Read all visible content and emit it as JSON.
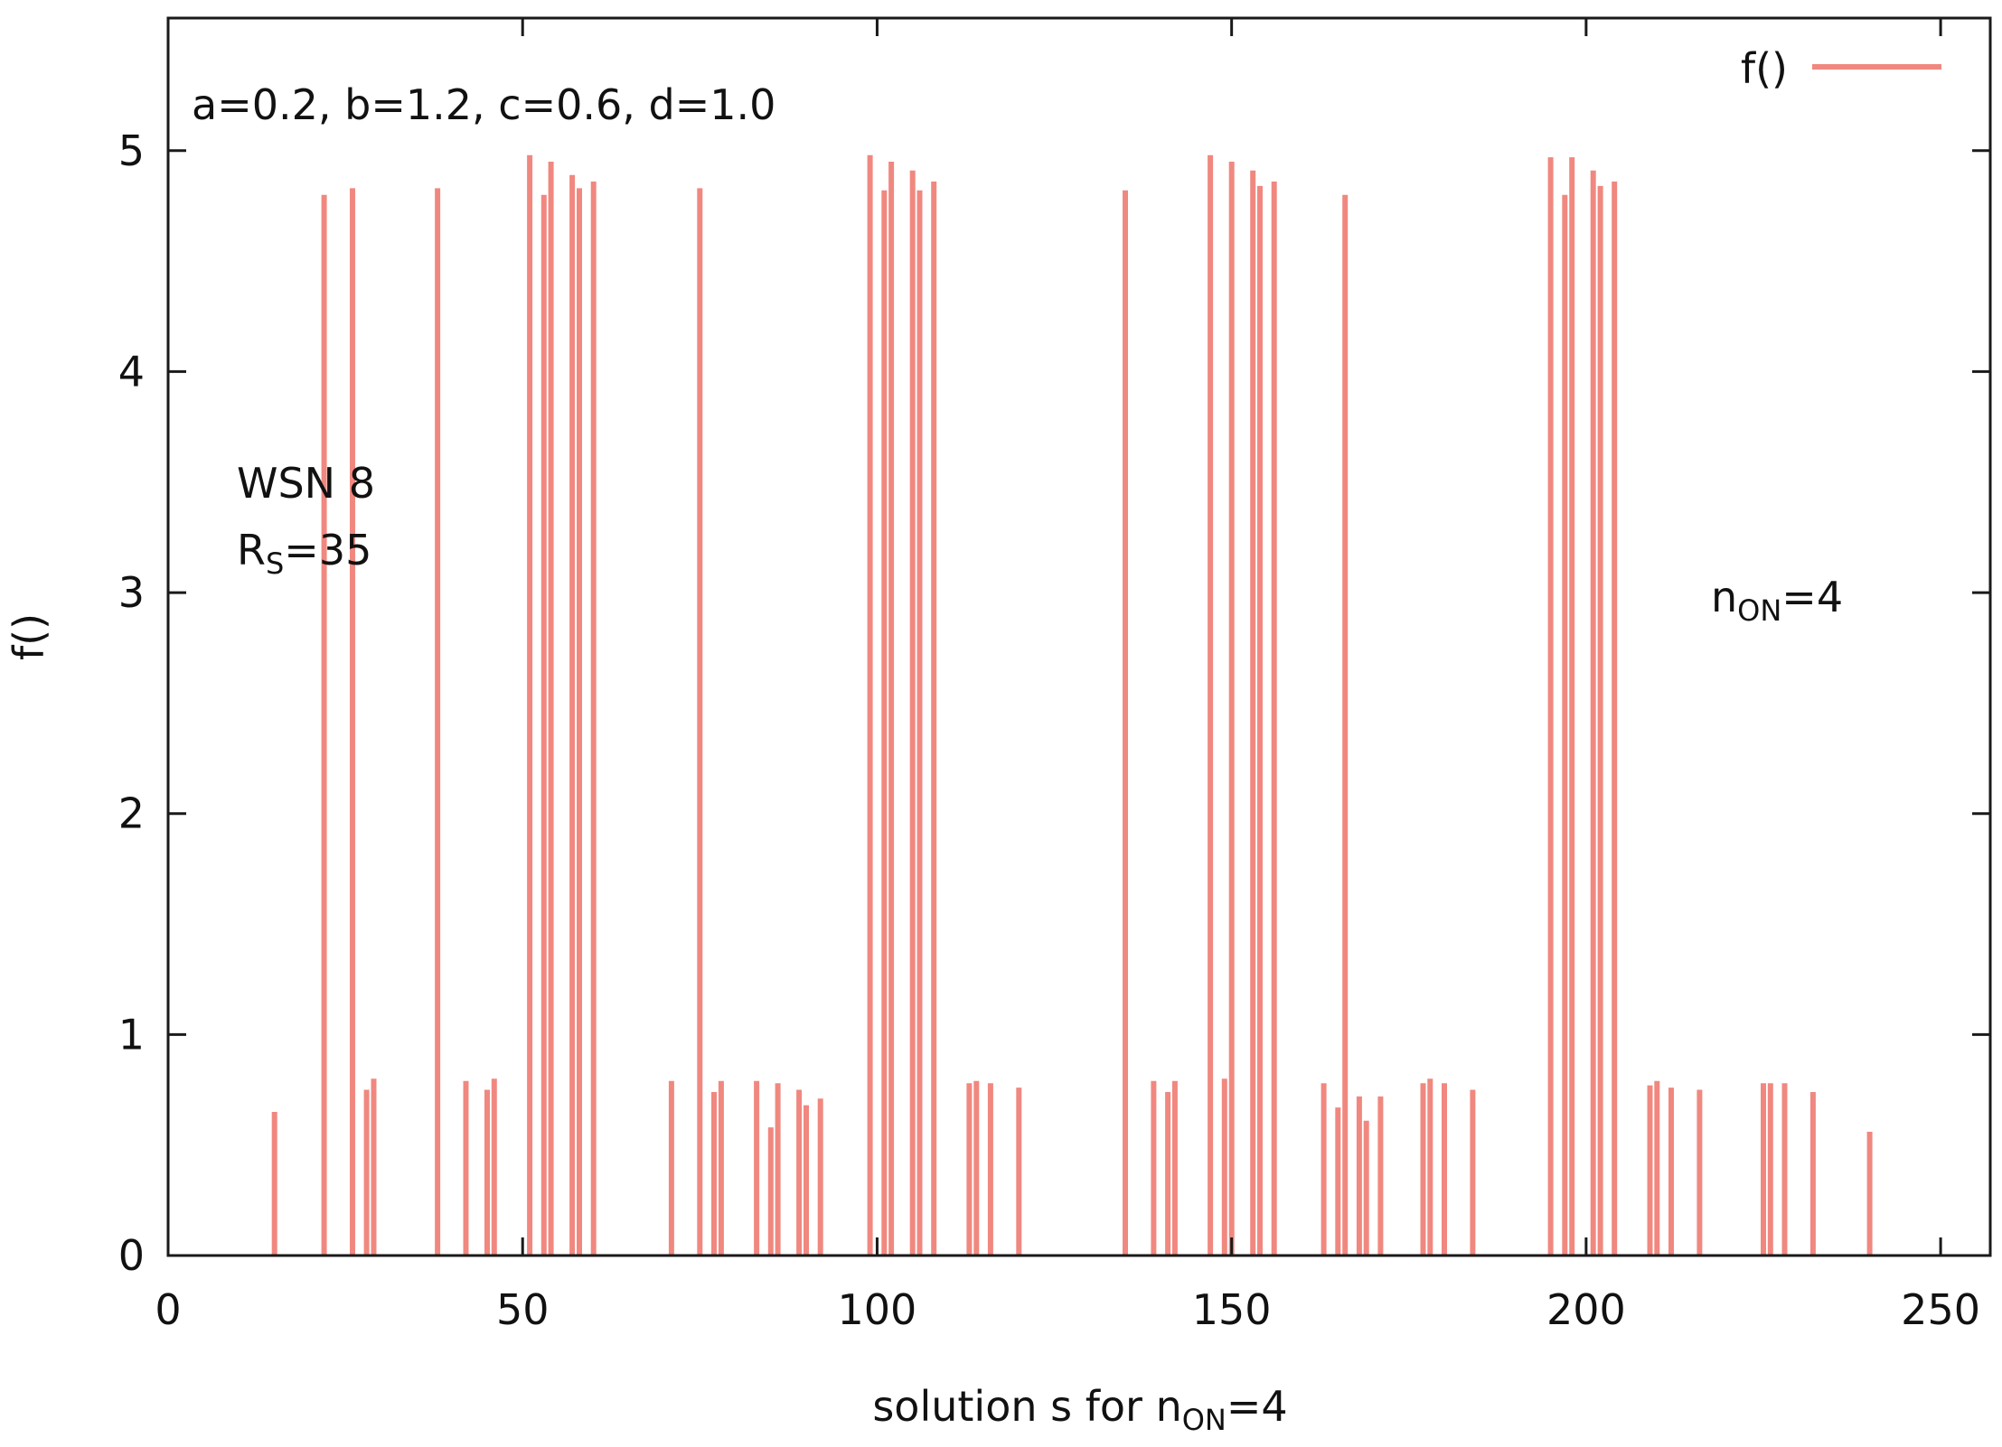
{
  "chart_data": {
    "type": "bar",
    "title": "",
    "xlabel": {
      "main": "solution s for n",
      "sub": "ON",
      "tail": "=4"
    },
    "ylabel": "f()",
    "xlim": [
      0,
      257
    ],
    "ylim": [
      0,
      5.6
    ],
    "xticks": [
      0,
      50,
      100,
      150,
      200,
      250
    ],
    "yticks": [
      0,
      1,
      2,
      3,
      4,
      5
    ],
    "grid": false,
    "legend": {
      "position": "top-right",
      "label": "f()"
    },
    "series": [
      {
        "name": "f()",
        "color": "#f08880",
        "points": [
          [
            15,
            0.65
          ],
          [
            22,
            4.8
          ],
          [
            26,
            4.83
          ],
          [
            28,
            0.75
          ],
          [
            29,
            0.8
          ],
          [
            38,
            4.83
          ],
          [
            42,
            0.79
          ],
          [
            45,
            0.75
          ],
          [
            46,
            0.8
          ],
          [
            51,
            4.98
          ],
          [
            53,
            4.8
          ],
          [
            54,
            4.95
          ],
          [
            57,
            4.89
          ],
          [
            58,
            4.83
          ],
          [
            60,
            4.86
          ],
          [
            71,
            0.79
          ],
          [
            75,
            4.83
          ],
          [
            77,
            0.74
          ],
          [
            78,
            0.79
          ],
          [
            83,
            0.79
          ],
          [
            85,
            0.58
          ],
          [
            86,
            0.78
          ],
          [
            89,
            0.75
          ],
          [
            90,
            0.68
          ],
          [
            92,
            0.71
          ],
          [
            99,
            4.98
          ],
          [
            101,
            4.82
          ],
          [
            102,
            4.95
          ],
          [
            105,
            4.91
          ],
          [
            106,
            4.82
          ],
          [
            108,
            4.86
          ],
          [
            113,
            0.78
          ],
          [
            114,
            0.79
          ],
          [
            116,
            0.78
          ],
          [
            120,
            0.76
          ],
          [
            135,
            4.82
          ],
          [
            139,
            0.79
          ],
          [
            141,
            0.74
          ],
          [
            142,
            0.79
          ],
          [
            147,
            4.98
          ],
          [
            149,
            0.8
          ],
          [
            150,
            4.95
          ],
          [
            153,
            4.91
          ],
          [
            154,
            4.84
          ],
          [
            156,
            4.86
          ],
          [
            163,
            0.78
          ],
          [
            165,
            0.67
          ],
          [
            166,
            4.8
          ],
          [
            168,
            0.72
          ],
          [
            169,
            0.61
          ],
          [
            171,
            0.72
          ],
          [
            177,
            0.78
          ],
          [
            178,
            0.8
          ],
          [
            180,
            0.78
          ],
          [
            184,
            0.75
          ],
          [
            195,
            4.97
          ],
          [
            197,
            4.8
          ],
          [
            198,
            4.97
          ],
          [
            201,
            4.91
          ],
          [
            202,
            4.84
          ],
          [
            204,
            4.86
          ],
          [
            209,
            0.77
          ],
          [
            210,
            0.79
          ],
          [
            212,
            0.76
          ],
          [
            216,
            0.75
          ],
          [
            225,
            0.78
          ],
          [
            226,
            0.78
          ],
          [
            228,
            0.78
          ],
          [
            232,
            0.74
          ],
          [
            240,
            0.56
          ]
        ]
      }
    ],
    "annotations": [
      {
        "id": "params",
        "text": "a=0.2, b=1.2, c=0.6, d=1.0"
      },
      {
        "id": "wsn",
        "text": "WSN 8"
      },
      {
        "id": "rs",
        "main": "R",
        "sub": "S",
        "tail": "=35"
      },
      {
        "id": "non",
        "main": "n",
        "sub": "ON",
        "tail": "=4"
      }
    ]
  }
}
